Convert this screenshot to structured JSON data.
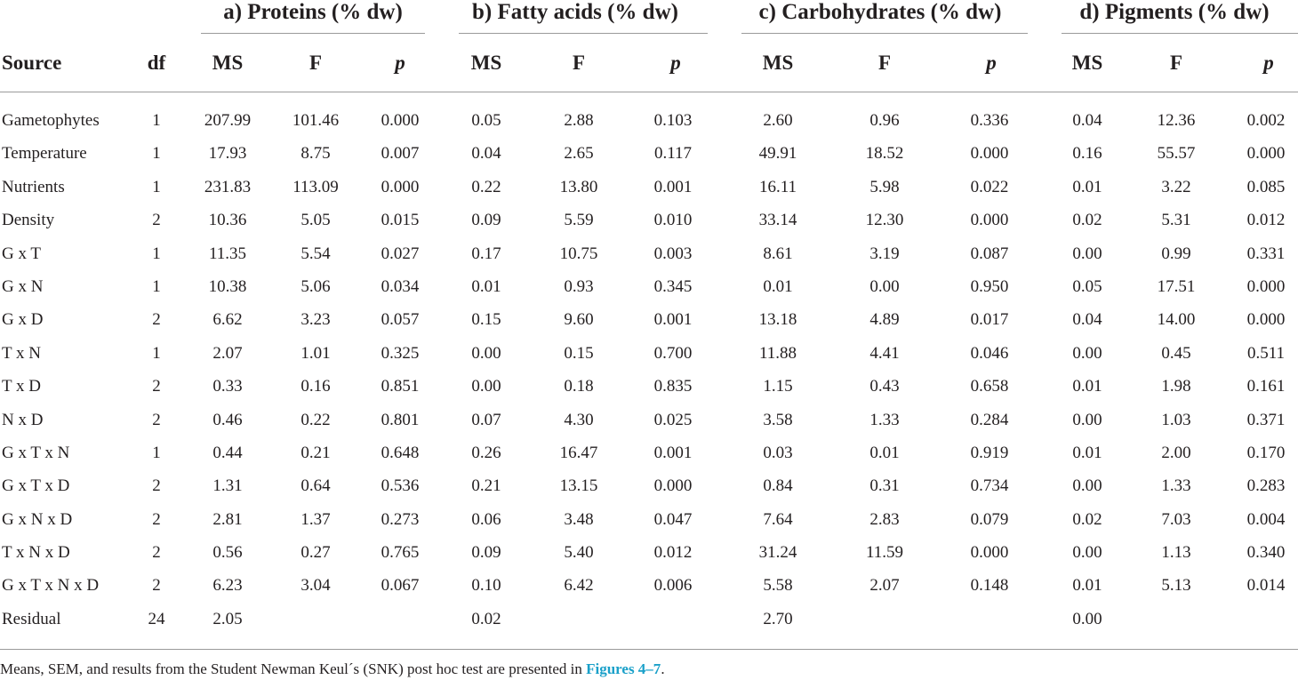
{
  "table": {
    "groups": [
      "a) Proteins (% dw)",
      "b) Fatty acids (% dw)",
      "c) Carbohydrates (% dw)",
      "d) Pigments (% dw)"
    ],
    "headers": {
      "source": "Source",
      "df": "df",
      "stats": [
        "MS",
        "F",
        "p",
        "MS",
        "F",
        "p",
        "MS",
        "F",
        "p",
        "MS",
        "F",
        "p"
      ]
    },
    "rows": [
      [
        "Gametophytes",
        "1",
        "207.99",
        "101.46",
        "0.000",
        "0.05",
        "2.88",
        "0.103",
        "2.60",
        "0.96",
        "0.336",
        "0.04",
        "12.36",
        "0.002"
      ],
      [
        "Temperature",
        "1",
        "17.93",
        "8.75",
        "0.007",
        "0.04",
        "2.65",
        "0.117",
        "49.91",
        "18.52",
        "0.000",
        "0.16",
        "55.57",
        "0.000"
      ],
      [
        "Nutrients",
        "1",
        "231.83",
        "113.09",
        "0.000",
        "0.22",
        "13.80",
        "0.001",
        "16.11",
        "5.98",
        "0.022",
        "0.01",
        "3.22",
        "0.085"
      ],
      [
        "Density",
        "2",
        "10.36",
        "5.05",
        "0.015",
        "0.09",
        "5.59",
        "0.010",
        "33.14",
        "12.30",
        "0.000",
        "0.02",
        "5.31",
        "0.012"
      ],
      [
        "G x T",
        "1",
        "11.35",
        "5.54",
        "0.027",
        "0.17",
        "10.75",
        "0.003",
        "8.61",
        "3.19",
        "0.087",
        "0.00",
        "0.99",
        "0.331"
      ],
      [
        "G x N",
        "1",
        "10.38",
        "5.06",
        "0.034",
        "0.01",
        "0.93",
        "0.345",
        "0.01",
        "0.00",
        "0.950",
        "0.05",
        "17.51",
        "0.000"
      ],
      [
        "G x D",
        "2",
        "6.62",
        "3.23",
        "0.057",
        "0.15",
        "9.60",
        "0.001",
        "13.18",
        "4.89",
        "0.017",
        "0.04",
        "14.00",
        "0.000"
      ],
      [
        "T x N",
        "1",
        "2.07",
        "1.01",
        "0.325",
        "0.00",
        "0.15",
        "0.700",
        "11.88",
        "4.41",
        "0.046",
        "0.00",
        "0.45",
        "0.511"
      ],
      [
        "T x D",
        "2",
        "0.33",
        "0.16",
        "0.851",
        "0.00",
        "0.18",
        "0.835",
        "1.15",
        "0.43",
        "0.658",
        "0.01",
        "1.98",
        "0.161"
      ],
      [
        "N x D",
        "2",
        "0.46",
        "0.22",
        "0.801",
        "0.07",
        "4.30",
        "0.025",
        "3.58",
        "1.33",
        "0.284",
        "0.00",
        "1.03",
        "0.371"
      ],
      [
        "G x T x N",
        "1",
        "0.44",
        "0.21",
        "0.648",
        "0.26",
        "16.47",
        "0.001",
        "0.03",
        "0.01",
        "0.919",
        "0.01",
        "2.00",
        "0.170"
      ],
      [
        "G x T x D",
        "2",
        "1.31",
        "0.64",
        "0.536",
        "0.21",
        "13.15",
        "0.000",
        "0.84",
        "0.31",
        "0.734",
        "0.00",
        "1.33",
        "0.283"
      ],
      [
        "G x N x D",
        "2",
        "2.81",
        "1.37",
        "0.273",
        "0.06",
        "3.48",
        "0.047",
        "7.64",
        "2.83",
        "0.079",
        "0.02",
        "7.03",
        "0.004"
      ],
      [
        "T x N x D",
        "2",
        "0.56",
        "0.27",
        "0.765",
        "0.09",
        "5.40",
        "0.012",
        "31.24",
        "11.59",
        "0.000",
        "0.00",
        "1.13",
        "0.340"
      ],
      [
        "G x T x N x D",
        "2",
        "6.23",
        "3.04",
        "0.067",
        "0.10",
        "6.42",
        "0.006",
        "5.58",
        "2.07",
        "0.148",
        "0.01",
        "5.13",
        "0.014"
      ],
      [
        "Residual",
        "24",
        "2.05",
        "",
        "",
        "0.02",
        "",
        "",
        "2.70",
        "",
        "",
        "0.00",
        "",
        ""
      ]
    ]
  },
  "footnote": {
    "text": "Means, SEM, and results from the Student Newman Keul´s (SNK) post hoc test are presented in ",
    "link": "Figures 4–7",
    "end": "."
  }
}
